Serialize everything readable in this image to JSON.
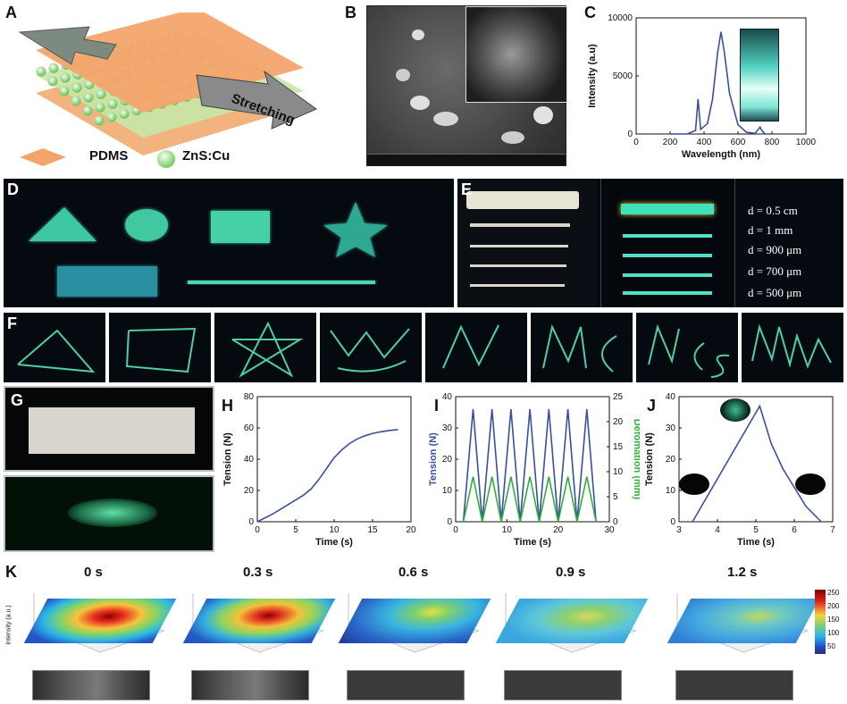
{
  "panels": {
    "A": "A",
    "B": "B",
    "C": "C",
    "D": "D",
    "E": "E",
    "F": "F",
    "G": "G",
    "H": "H",
    "I": "I",
    "J": "J",
    "K": "K"
  },
  "panel_a": {
    "arrow_label": "Stretching",
    "legend_pdms": "PDMS",
    "legend_zns": "ZnS:Cu"
  },
  "panel_e": {
    "diameters": [
      "d = 0.5 cm",
      "d = 1 mm",
      "d = 900 μm",
      "d = 700 μm",
      "d = 500 μm"
    ]
  },
  "panel_k": {
    "times": [
      "0 s",
      "0.3 s",
      "0.6 s",
      "0.9 s",
      "1.2 s"
    ],
    "zlabel": "Intensity (a.u.)",
    "colorbar_ticks": [
      "250",
      "200",
      "150",
      "100",
      "50"
    ]
  },
  "chart_data": [
    {
      "id": "C",
      "type": "line",
      "xlabel": "Wavelength (nm)",
      "ylabel": "Intensity (a.u)",
      "xlim": [
        0,
        1000
      ],
      "ylim": [
        0,
        10000
      ],
      "xticks": [
        0,
        200,
        400,
        600,
        800,
        1000
      ],
      "yticks": [
        0,
        5000,
        10000
      ],
      "series": [
        {
          "color": "#3a4fa0",
          "x": [
            200,
            300,
            350,
            365,
            380,
            420,
            450,
            480,
            500,
            520,
            550,
            600,
            650,
            700,
            720,
            730,
            740,
            760,
            800
          ],
          "y": [
            0,
            0,
            300,
            3000,
            400,
            900,
            3000,
            7000,
            8800,
            7000,
            3500,
            800,
            150,
            50,
            400,
            600,
            300,
            0,
            0
          ]
        }
      ]
    },
    {
      "id": "H",
      "type": "line",
      "xlabel": "Time (s)",
      "ylabel": "Tension (N)",
      "xlim": [
        0,
        20
      ],
      "ylim": [
        0,
        80
      ],
      "xticks": [
        0,
        5,
        10,
        15,
        20
      ],
      "yticks": [
        0,
        20,
        40,
        60,
        80
      ],
      "series": [
        {
          "color": "#3a4fa0",
          "x": [
            0,
            2,
            4,
            6,
            7,
            8,
            9,
            10,
            11,
            12,
            13,
            14,
            15,
            16,
            17,
            18.3
          ],
          "y": [
            0,
            5,
            11,
            17,
            21,
            27,
            34,
            41,
            46,
            50,
            53,
            55,
            56.5,
            57.5,
            58.2,
            59
          ]
        }
      ]
    },
    {
      "id": "I",
      "type": "line",
      "xlabel": "Time (s)",
      "ylabel": "Tension (N)",
      "ylabel_right": "Defomation (mm)",
      "xlim": [
        0,
        30
      ],
      "ylim": [
        0,
        40
      ],
      "ylim_right": [
        0,
        25
      ],
      "xticks": [
        0,
        10,
        20,
        30
      ],
      "yticks": [
        0,
        10,
        20,
        30,
        40
      ],
      "yticks_right": [
        0,
        5,
        10,
        15,
        20,
        25
      ],
      "series": [
        {
          "axis": "left",
          "color": "#3a4fa0",
          "x": [
            1.5,
            3.4,
            5.2,
            7.1,
            8.9,
            10.8,
            12.6,
            14.5,
            16.3,
            18.2,
            20.0,
            21.9,
            23.7,
            25.6,
            27.4
          ],
          "y": [
            0,
            36,
            0,
            36,
            0,
            36,
            0,
            36,
            0,
            36,
            0,
            36,
            0,
            36,
            0
          ]
        },
        {
          "axis": "right",
          "color": "#2fae3a",
          "x": [
            1.5,
            3.4,
            5.2,
            7.1,
            8.9,
            10.8,
            12.6,
            14.5,
            16.3,
            18.2,
            20.0,
            21.9,
            23.7,
            25.6,
            27.4
          ],
          "y": [
            0,
            9,
            0,
            9,
            0,
            9,
            0,
            9,
            0,
            9,
            0,
            9,
            0,
            9,
            0
          ]
        }
      ]
    },
    {
      "id": "J",
      "type": "line",
      "xlabel": "Time (s)",
      "ylabel": "Tension (N)",
      "xlim": [
        3,
        7
      ],
      "ylim": [
        0,
        40
      ],
      "xticks": [
        3,
        4,
        5,
        6,
        7
      ],
      "yticks": [
        0,
        10,
        20,
        30,
        40
      ],
      "series": [
        {
          "color": "#3a4fa0",
          "x": [
            3.35,
            5.1,
            5.4,
            5.7,
            6.0,
            6.3,
            6.7
          ],
          "y": [
            0,
            37,
            25,
            17,
            11,
            5,
            0
          ]
        }
      ]
    }
  ]
}
